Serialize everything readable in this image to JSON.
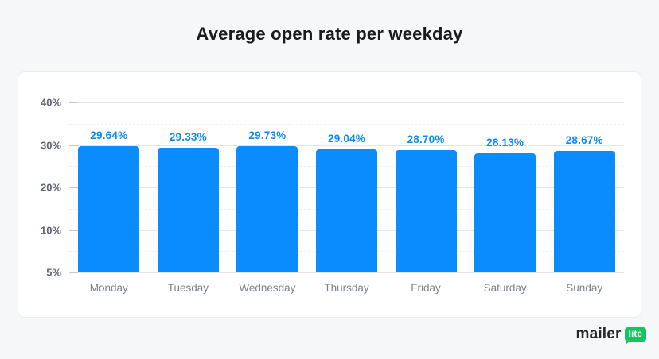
{
  "title": "Average open rate per weekday",
  "chart_data": {
    "type": "bar",
    "title": "Average open rate per weekday",
    "categories": [
      "Monday",
      "Tuesday",
      "Wednesday",
      "Thursday",
      "Friday",
      "Saturday",
      "Sunday"
    ],
    "values": [
      29.64,
      29.33,
      29.73,
      29.04,
      28.7,
      28.13,
      28.67
    ],
    "data_labels": [
      "29.64%",
      "29.33%",
      "29.73%",
      "29.04%",
      "28.70%",
      "28.13%",
      "28.67%"
    ],
    "xlabel": "",
    "ylabel": "",
    "legend": "none",
    "grid": "horizontal",
    "y_axis": {
      "baseline_value": 5,
      "ticks": [
        {
          "value": 40,
          "label": "40%"
        },
        {
          "value": 35,
          "label": ""
        },
        {
          "value": 30,
          "label": "30%"
        },
        {
          "value": 25,
          "label": ""
        },
        {
          "value": 20,
          "label": "20%"
        },
        {
          "value": 15,
          "label": ""
        },
        {
          "value": 10,
          "label": "10%"
        },
        {
          "value": 7.5,
          "label": ""
        },
        {
          "value": 5,
          "label": "5%"
        }
      ]
    }
  },
  "branding": {
    "wordmark": "mailer",
    "badge_label": "lite"
  },
  "colors": {
    "page-bg": "#f6f7f8",
    "card-bg": "#ffffff",
    "card-border": "#e9edf1",
    "title": "#1b1c1f",
    "bar-fill": "#0a8cff",
    "value-label": "#0e8bf2",
    "grid-major": "#e3e5e8",
    "grid-minor": "#eef0f2",
    "tick": "#c5c9ce",
    "axis-label": "#5f656d",
    "day-label": "#7b828b",
    "wordmark": "#24272c",
    "badge-green": "#12c55d"
  }
}
